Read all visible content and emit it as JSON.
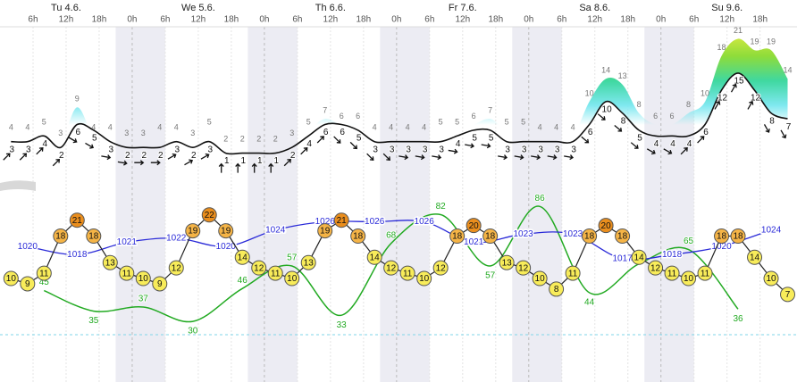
{
  "chart_data": {
    "type": "meteogram",
    "xlim": [
      0,
      144.7
    ],
    "day_ticks": [
      {
        "value": 12,
        "label": "Tu 4.6."
      },
      {
        "value": 36,
        "label": "We 5.6."
      },
      {
        "value": 60,
        "label": "Th 6.6."
      },
      {
        "value": 84,
        "label": "Fr 7.6."
      },
      {
        "value": 108,
        "label": "Sa 8.6."
      },
      {
        "value": 132,
        "label": "Su 9.6."
      }
    ],
    "xticks": [
      {
        "value": 6,
        "label": "6h"
      },
      {
        "value": 12,
        "label": "12h"
      },
      {
        "value": 18,
        "label": "18h"
      },
      {
        "value": 24,
        "label": "0h"
      },
      {
        "value": 30,
        "label": "6h"
      },
      {
        "value": 36,
        "label": "12h"
      },
      {
        "value": 42,
        "label": "18h"
      },
      {
        "value": 48,
        "label": "0h"
      },
      {
        "value": 54,
        "label": "6h"
      },
      {
        "value": 60,
        "label": "12h"
      },
      {
        "value": 66,
        "label": "18h"
      },
      {
        "value": 72,
        "label": "0h"
      },
      {
        "value": 78,
        "label": "6h"
      },
      {
        "value": 84,
        "label": "12h"
      },
      {
        "value": 90,
        "label": "18h"
      },
      {
        "value": 96,
        "label": "0h"
      },
      {
        "value": 102,
        "label": "6h"
      },
      {
        "value": 108,
        "label": "12h"
      },
      {
        "value": 114,
        "label": "18h"
      },
      {
        "value": 120,
        "label": "0h"
      },
      {
        "value": 126,
        "label": "6h"
      },
      {
        "value": 132,
        "label": "12h"
      },
      {
        "value": 138,
        "label": "18h"
      }
    ],
    "x": [
      2,
      5,
      8,
      11,
      14,
      17,
      20,
      23,
      26,
      29,
      32,
      35,
      38,
      41,
      44,
      47,
      50,
      53,
      56,
      59,
      62,
      65,
      68,
      71,
      74,
      77,
      80,
      83,
      86,
      89,
      92,
      95,
      98,
      101,
      104,
      107,
      110,
      113,
      116,
      119,
      122,
      125,
      128,
      131,
      134,
      137,
      140,
      143
    ],
    "wind": {
      "ylim": [
        -2.66,
        23.1
      ],
      "color": "#111111",
      "gust_colors": [
        "#7fe8f0",
        "#3fd8a0",
        "#8edc3a",
        "#eeee44"
      ],
      "values": [
        3,
        3,
        4,
        2,
        6,
        5,
        3,
        2,
        2,
        2,
        3,
        2,
        3,
        1,
        1,
        1,
        1,
        2,
        4,
        6,
        6,
        5,
        3,
        3,
        3,
        3,
        3,
        4,
        5,
        5,
        3,
        3,
        3,
        3,
        3,
        6,
        10,
        8,
        5,
        4,
        4,
        4,
        6,
        12,
        15,
        12,
        8,
        7
      ],
      "gusts": [
        4,
        4,
        5,
        3,
        9,
        4,
        4,
        3,
        3,
        4,
        4,
        3,
        5,
        2,
        2,
        2,
        2,
        3,
        5,
        7,
        6,
        6,
        4,
        4,
        4,
        4,
        5,
        5,
        6,
        7,
        5,
        5,
        4,
        4,
        4,
        10,
        14,
        13,
        8,
        6,
        6,
        8,
        10,
        18,
        21,
        19,
        19,
        14
      ],
      "direction": [
        45,
        45,
        45,
        45,
        120,
        120,
        100,
        100,
        90,
        90,
        60,
        60,
        60,
        0,
        0,
        0,
        0,
        45,
        45,
        45,
        135,
        135,
        135,
        135,
        100,
        100,
        100,
        100,
        100,
        100,
        100,
        100,
        100,
        100,
        100,
        130,
        130,
        130,
        130,
        120,
        120,
        45,
        45,
        30,
        30,
        30,
        150,
        150
      ]
    },
    "temperature": {
      "ylim": [
        -0.6,
        25.5
      ],
      "marker_colors": [
        "#f8ec5a",
        "#f5b446",
        "#ea8e1d"
      ],
      "values": [
        10,
        9,
        11,
        18,
        21,
        18,
        13,
        11,
        10,
        9,
        12,
        19,
        22,
        19,
        14,
        12,
        11,
        10,
        13,
        19,
        21,
        18,
        14,
        12,
        11,
        10,
        12,
        18,
        20,
        18,
        13,
        12,
        10,
        8,
        11,
        18,
        20,
        18,
        14,
        12,
        11,
        10,
        11,
        18,
        18,
        14,
        10,
        7
      ]
    },
    "pressure": {
      "ylim": [
        998.5,
        1032.2
      ],
      "color": "#2a2ad8",
      "x": [
        5,
        14,
        23,
        32,
        41,
        50,
        59,
        68,
        77,
        86,
        95,
        104,
        113,
        122,
        131,
        140
      ],
      "values": [
        1020,
        1018,
        1021,
        1022,
        1020,
        1024,
        1026,
        1026,
        1026,
        1021,
        1023,
        1023,
        1017,
        1018,
        1020,
        1024
      ]
    },
    "humidity": {
      "ylim": [
        23.5,
        90.9
      ],
      "color": "#22aa22",
      "x": [
        8,
        17,
        26,
        35,
        44,
        53,
        62,
        71,
        80,
        89,
        98,
        107,
        116,
        125,
        134
      ],
      "values": [
        45,
        35,
        37,
        30,
        46,
        57,
        33,
        68,
        82,
        57,
        86,
        44,
        58,
        65,
        36
      ]
    }
  }
}
